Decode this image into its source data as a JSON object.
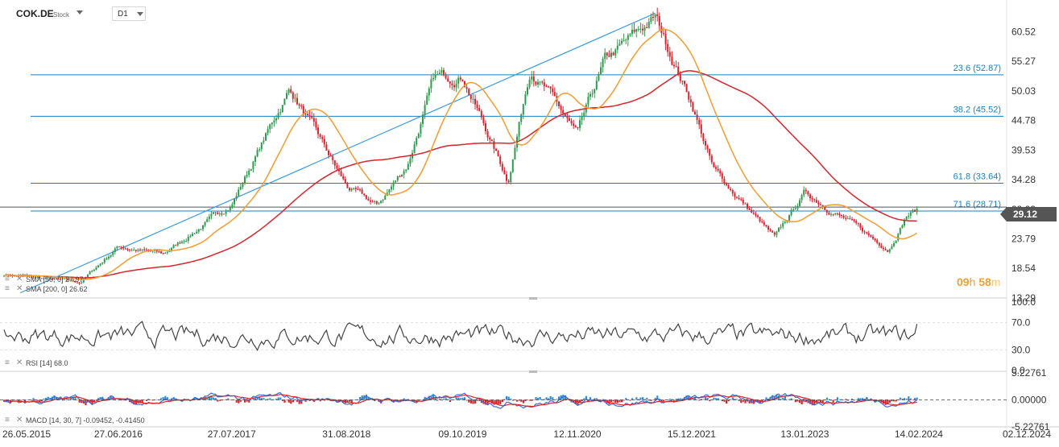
{
  "header": {
    "symbol": "COK.DE",
    "symbol_type": "Stock",
    "timeframe": "D1"
  },
  "countdown": {
    "h": "09",
    "h_unit": "h",
    "m": "58",
    "m_unit": "m"
  },
  "last_price": "29.12",
  "indicators": {
    "sma_fast": "SMA [50, 0]  27.97",
    "sma_slow": "SMA [200, 0]  26.62",
    "rsi": "RSI [14]  68.0",
    "macd": "MACD [14, 30, 7]  -0.09452,  -0.41450"
  },
  "colors": {
    "up": "#2e9c4e",
    "down": "#d8242a",
    "sma_fast": "#f39c30",
    "sma_slow": "#d8242a",
    "fib": "#1a7fc1",
    "trend": "#3a9be0",
    "rsi": "#444444",
    "macd_line": "#3a6fd8",
    "signal_line": "#d8242a",
    "hist_pos": "#2a8fd8",
    "hist_neg": "#d8242a"
  },
  "chart_data": [
    {
      "type": "candlestick",
      "title": "COK.DE",
      "y_ticks": [
        "60.52",
        "55.27",
        "50.03",
        "44.78",
        "39.53",
        "34.28",
        "29.03",
        "23.79",
        "18.54",
        "13.29"
      ],
      "ylim": [
        13.29,
        65.0
      ],
      "x_ticks": [
        "26.05.2015",
        "27.06.2016",
        "27.07.2017",
        "31.08.2018",
        "09.10.2019",
        "12.11.2020",
        "15.12.2021",
        "13.01.2023",
        "14.02.2024",
        "02.12.2024"
      ],
      "key_points": [
        {
          "date": "26.05.2015",
          "close": 17.5
        },
        {
          "date": "15.02.2016",
          "close": 16.0
        },
        {
          "date": "27.06.2016",
          "close": 22.5
        },
        {
          "date": "01.12.2016",
          "close": 21.0
        },
        {
          "date": "27.07.2017",
          "close": 30.0
        },
        {
          "date": "01.01.2018",
          "close": 46.0
        },
        {
          "date": "15.02.2018",
          "close": 50.5
        },
        {
          "date": "31.08.2018",
          "close": 33.0
        },
        {
          "date": "15.12.2018",
          "close": 29.5
        },
        {
          "date": "01.04.2019",
          "close": 37.0
        },
        {
          "date": "01.07.2019",
          "close": 52.0
        },
        {
          "date": "09.10.2019",
          "close": 53.0
        },
        {
          "date": "15.03.2020",
          "close": 34.0
        },
        {
          "date": "01.06.2020",
          "close": 54.5
        },
        {
          "date": "12.11.2020",
          "close": 42.0
        },
        {
          "date": "15.02.2021",
          "close": 55.0
        },
        {
          "date": "10.08.2021",
          "close": 63.0
        },
        {
          "date": "15.12.2021",
          "close": 48.0
        },
        {
          "date": "01.03.2022",
          "close": 36.0
        },
        {
          "date": "15.06.2022",
          "close": 30.0
        },
        {
          "date": "01.10.2022",
          "close": 23.8
        },
        {
          "date": "13.01.2023",
          "close": 32.0
        },
        {
          "date": "01.05.2023",
          "close": 28.5
        },
        {
          "date": "01.09.2023",
          "close": 24.0
        },
        {
          "date": "01.11.2023",
          "close": 22.0
        },
        {
          "date": "01.01.2024",
          "close": 28.0
        },
        {
          "date": "14.02.2024",
          "close": 29.12
        }
      ],
      "fibonacci_levels": [
        {
          "label": "23.6 (52.87)",
          "value": 52.87
        },
        {
          "label": "38.2 (45.52)",
          "value": 45.52
        },
        {
          "label": "61.8 (33.64)",
          "value": 33.64
        },
        {
          "label": "71.6 (28.71)",
          "value": 28.71
        }
      ],
      "trend_line": [
        {
          "date": "26.05.2015",
          "value": 14.2
        },
        {
          "date": "10.08.2021",
          "value": 63.8
        }
      ],
      "series": [
        {
          "name": "SMA [50, 0]",
          "last": 27.97
        },
        {
          "name": "SMA [200, 0]",
          "last": 26.62
        }
      ]
    },
    {
      "type": "line",
      "title": "RSI [14]",
      "y_ticks": [
        "100.0",
        "70.0",
        "30.0",
        "0.0"
      ],
      "ylim": [
        0,
        100
      ],
      "last": 68.0
    },
    {
      "type": "line",
      "title": "MACD [14, 30, 7]",
      "y_ticks": [
        "5.22761",
        "0.00000",
        "-5.22761"
      ],
      "ylim": [
        -5.22761,
        5.22761
      ],
      "series": [
        {
          "name": "MACD",
          "last": -0.09452
        },
        {
          "name": "Signal",
          "last": -0.4145
        }
      ]
    }
  ]
}
